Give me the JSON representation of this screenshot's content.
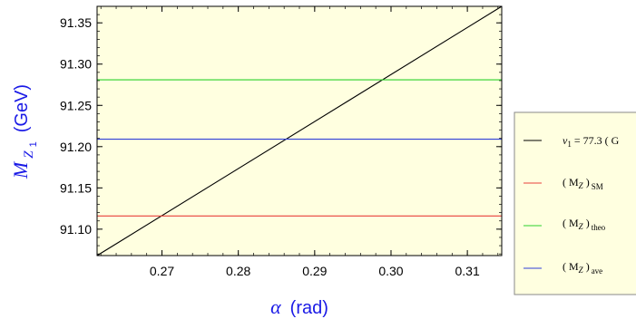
{
  "chart_data": {
    "type": "line",
    "xlabel": {
      "symbol": "α",
      "unit": "(rad)"
    },
    "ylabel": {
      "symbol": "M",
      "sub": "Z",
      "subsub": "1",
      "unit": "(GeV)"
    },
    "xlim": [
      0.2615,
      0.3145
    ],
    "ylim": [
      91.068,
      91.37
    ],
    "x_ticks": [
      {
        "value": 0.27,
        "label": "0.27"
      },
      {
        "value": 0.28,
        "label": "0.28"
      },
      {
        "value": 0.29,
        "label": "0.29"
      },
      {
        "value": 0.3,
        "label": "0.30"
      },
      {
        "value": 0.31,
        "label": "0.31"
      }
    ],
    "y_ticks": [
      {
        "value": 91.1,
        "label": "91.10"
      },
      {
        "value": 91.15,
        "label": "91.15"
      },
      {
        "value": 91.2,
        "label": "91.20"
      },
      {
        "value": 91.25,
        "label": "91.25"
      },
      {
        "value": 91.3,
        "label": "91.30"
      },
      {
        "value": 91.35,
        "label": "91.35"
      }
    ],
    "background": "#ffffe0",
    "series": [
      {
        "legend": {
          "pre": "v",
          "sub": "1",
          "post": " = 77.3  ( G"
        },
        "color": "#000000",
        "x": [
          0.2615,
          0.3145
        ],
        "y": [
          91.068,
          91.37
        ]
      },
      {
        "legend": {
          "pre": "( M",
          "sub1": "Z",
          "mid": " )",
          "sub2": "SM"
        },
        "color": "#e8413b",
        "x": [
          0.2615,
          0.3145
        ],
        "y": [
          91.116,
          91.116
        ]
      },
      {
        "legend": {
          "pre": "( M",
          "sub1": "Z",
          "mid": " )",
          "sub2": "theo"
        },
        "color": "#2bd12b",
        "x": [
          0.2615,
          0.3145
        ],
        "y": [
          91.281,
          91.281
        ]
      },
      {
        "legend": {
          "pre": "( M",
          "sub1": "Z",
          "mid": " )",
          "sub2": "ave"
        },
        "color": "#2f3fd8",
        "x": [
          0.2615,
          0.3145
        ],
        "y": [
          91.209,
          91.209
        ]
      }
    ]
  }
}
